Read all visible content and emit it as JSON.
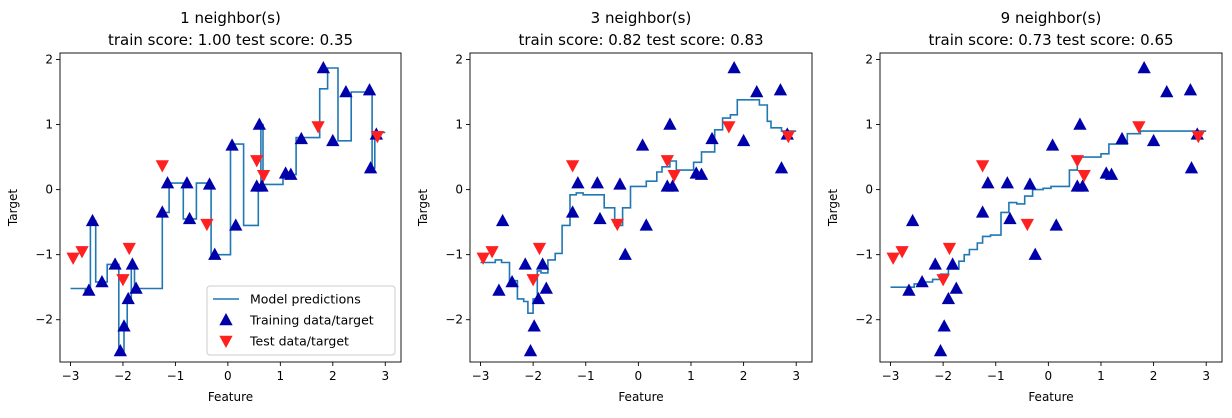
{
  "figure": {
    "legend": {
      "placement": "lower-right",
      "entries": [
        {
          "key": "model",
          "label": "Model predictions"
        },
        {
          "key": "train",
          "label": "Training data/target"
        },
        {
          "key": "test",
          "label": "Test data/target"
        }
      ]
    },
    "colors": {
      "model_line": "#1f77b4",
      "train_marker": "#0000aa",
      "test_marker": "#ff2020",
      "axes": "#000000"
    }
  },
  "chart_data": [
    {
      "type": "line",
      "title_line1": "1 neighbor(s)",
      "title_line2": "train score: 1.00 test score: 0.35",
      "xlabel": "Feature",
      "ylabel": "Target",
      "xlim": [
        -3.2,
        3.3
      ],
      "ylim": [
        -2.65,
        2.1
      ],
      "xticks": [
        -3,
        -2,
        -1,
        0,
        1,
        2,
        3
      ],
      "xtick_labels": [
        "−3",
        "−2",
        "−1",
        "0",
        "1",
        "2",
        "3"
      ],
      "yticks": [
        2,
        1,
        0,
        -1,
        -2
      ],
      "ytick_labels": [
        "2",
        "1",
        "0",
        "−1",
        "−2"
      ],
      "show_legend": true,
      "model_x": [
        -3.0,
        -2.72,
        -2.72,
        -2.62,
        -2.62,
        -2.52,
        -2.52,
        -2.3,
        -2.3,
        -2.08,
        -2.08,
        -1.98,
        -1.98,
        -1.92,
        -1.92,
        -1.84,
        -1.84,
        -1.78,
        -1.78,
        -1.25,
        -1.25,
        -1.12,
        -1.12,
        -0.85,
        -0.85,
        -0.6,
        -0.6,
        -0.32,
        -0.32,
        0.05,
        0.05,
        0.3,
        0.3,
        0.58,
        0.58,
        0.63,
        0.63,
        0.67,
        0.67,
        1.05,
        1.05,
        1.12,
        1.12,
        1.3,
        1.3,
        1.75,
        1.75,
        1.9,
        1.9,
        2.1,
        2.1,
        2.35,
        2.35,
        2.7,
        2.7,
        2.75,
        2.75,
        2.8,
        2.8,
        3.0
      ],
      "model_y": [
        -1.52,
        -1.52,
        -1.55,
        -1.55,
        -0.48,
        -0.48,
        -1.42,
        -1.42,
        -1.15,
        -1.15,
        -2.48,
        -2.48,
        -2.1,
        -2.1,
        -1.68,
        -1.68,
        -1.15,
        -1.15,
        -1.52,
        -1.52,
        -0.35,
        -0.35,
        0.1,
        0.1,
        -0.45,
        -0.45,
        0.1,
        0.1,
        -1.0,
        -1.0,
        0.7,
        0.7,
        -0.55,
        -0.55,
        0.05,
        0.05,
        1.0,
        1.0,
        0.08,
        0.08,
        0.25,
        0.25,
        0.23,
        0.23,
        0.8,
        0.8,
        1.55,
        1.55,
        1.87,
        1.87,
        0.75,
        0.75,
        1.5,
        1.5,
        1.53,
        1.53,
        0.33,
        0.33,
        0.88,
        0.88
      ],
      "train": [
        {
          "x": -2.65,
          "y": -1.55
        },
        {
          "x": -2.58,
          "y": -0.48
        },
        {
          "x": -2.4,
          "y": -1.42
        },
        {
          "x": -2.15,
          "y": -1.15
        },
        {
          "x": -2.05,
          "y": -2.48
        },
        {
          "x": -1.98,
          "y": -2.1
        },
        {
          "x": -1.9,
          "y": -1.68
        },
        {
          "x": -1.82,
          "y": -1.15
        },
        {
          "x": -1.75,
          "y": -1.52
        },
        {
          "x": -1.25,
          "y": -0.35
        },
        {
          "x": -1.15,
          "y": 0.1
        },
        {
          "x": -0.78,
          "y": 0.1
        },
        {
          "x": -0.73,
          "y": -0.45
        },
        {
          "x": -0.35,
          "y": 0.08
        },
        {
          "x": -0.25,
          "y": -1.0
        },
        {
          "x": 0.08,
          "y": 0.68
        },
        {
          "x": 0.15,
          "y": -0.55
        },
        {
          "x": 0.55,
          "y": 0.05
        },
        {
          "x": 0.6,
          "y": 1.0
        },
        {
          "x": 0.65,
          "y": 0.05
        },
        {
          "x": 1.1,
          "y": 0.25
        },
        {
          "x": 1.2,
          "y": 0.23
        },
        {
          "x": 1.4,
          "y": 0.78
        },
        {
          "x": 1.82,
          "y": 1.87
        },
        {
          "x": 2.0,
          "y": 0.75
        },
        {
          "x": 2.25,
          "y": 1.5
        },
        {
          "x": 2.7,
          "y": 1.53
        },
        {
          "x": 2.72,
          "y": 0.33
        },
        {
          "x": 2.83,
          "y": 0.85
        }
      ],
      "test": [
        {
          "x": -2.95,
          "y": -1.05
        },
        {
          "x": -2.78,
          "y": -0.95
        },
        {
          "x": -2.0,
          "y": -1.38
        },
        {
          "x": -1.88,
          "y": -0.9
        },
        {
          "x": -1.25,
          "y": 0.37
        },
        {
          "x": -0.4,
          "y": -0.53
        },
        {
          "x": 0.55,
          "y": 0.45
        },
        {
          "x": 0.68,
          "y": 0.22
        },
        {
          "x": 1.72,
          "y": 0.97
        },
        {
          "x": 2.85,
          "y": 0.82
        }
      ]
    },
    {
      "type": "line",
      "title_line1": "3 neighbor(s)",
      "title_line2": "train score: 0.82 test score: 0.83",
      "xlabel": "Feature",
      "ylabel": "Target",
      "xlim": [
        -3.2,
        3.3
      ],
      "ylim": [
        -2.65,
        2.1
      ],
      "xticks": [
        -3,
        -2,
        -1,
        0,
        1,
        2,
        3
      ],
      "xtick_labels": [
        "−3",
        "−2",
        "−1",
        "0",
        "1",
        "2",
        "3"
      ],
      "yticks": [
        2,
        1,
        0,
        -1,
        -2
      ],
      "ytick_labels": [
        "2",
        "1",
        "0",
        "−1",
        "−2"
      ],
      "show_legend": false,
      "model_x": [
        -3.0,
        -2.72,
        -2.72,
        -2.6,
        -2.6,
        -2.45,
        -2.45,
        -2.3,
        -2.3,
        -2.18,
        -2.18,
        -2.1,
        -2.1,
        -2.0,
        -2.0,
        -1.92,
        -1.92,
        -1.85,
        -1.85,
        -1.72,
        -1.72,
        -1.58,
        -1.58,
        -1.45,
        -1.45,
        -1.3,
        -1.3,
        -1.18,
        -1.18,
        -1.05,
        -1.05,
        -0.65,
        -0.65,
        -0.45,
        -0.45,
        -0.3,
        -0.3,
        -0.15,
        -0.15,
        0.15,
        0.15,
        0.35,
        0.35,
        0.45,
        0.45,
        0.6,
        0.6,
        0.72,
        0.72,
        1.05,
        1.05,
        1.2,
        1.2,
        1.45,
        1.45,
        1.6,
        1.6,
        1.75,
        1.75,
        1.88,
        1.88,
        2.3,
        2.3,
        2.45,
        2.45,
        2.52,
        2.52,
        2.72,
        2.72,
        3.0
      ],
      "model_y": [
        -1.12,
        -1.12,
        -1.08,
        -1.08,
        -1.12,
        -1.12,
        -1.4,
        -1.4,
        -1.68,
        -1.68,
        -1.72,
        -1.72,
        -1.9,
        -1.9,
        -1.68,
        -1.68,
        -1.25,
        -1.25,
        -1.28,
        -1.28,
        -1.08,
        -1.08,
        -0.98,
        -0.98,
        -0.55,
        -0.55,
        -0.08,
        -0.08,
        -0.05,
        -0.05,
        -0.08,
        -0.08,
        -0.28,
        -0.28,
        -0.55,
        -0.55,
        -0.28,
        -0.28,
        0.05,
        0.05,
        0.13,
        0.13,
        0.27,
        0.27,
        0.35,
        0.35,
        0.44,
        0.44,
        0.3,
        0.3,
        0.42,
        0.42,
        0.58,
        0.58,
        0.92,
        0.92,
        1.1,
        1.1,
        1.15,
        1.15,
        1.38,
        1.38,
        1.3,
        1.3,
        1.05,
        1.05,
        0.95,
        0.95,
        0.9,
        0.9
      ],
      "train": [
        {
          "x": -2.65,
          "y": -1.55
        },
        {
          "x": -2.58,
          "y": -0.48
        },
        {
          "x": -2.4,
          "y": -1.42
        },
        {
          "x": -2.15,
          "y": -1.15
        },
        {
          "x": -2.05,
          "y": -2.48
        },
        {
          "x": -1.98,
          "y": -2.1
        },
        {
          "x": -1.9,
          "y": -1.68
        },
        {
          "x": -1.82,
          "y": -1.15
        },
        {
          "x": -1.75,
          "y": -1.52
        },
        {
          "x": -1.25,
          "y": -0.35
        },
        {
          "x": -1.15,
          "y": 0.1
        },
        {
          "x": -0.78,
          "y": 0.1
        },
        {
          "x": -0.73,
          "y": -0.45
        },
        {
          "x": -0.35,
          "y": 0.08
        },
        {
          "x": -0.25,
          "y": -1.0
        },
        {
          "x": 0.08,
          "y": 0.68
        },
        {
          "x": 0.15,
          "y": -0.55
        },
        {
          "x": 0.55,
          "y": 0.05
        },
        {
          "x": 0.6,
          "y": 1.0
        },
        {
          "x": 0.65,
          "y": 0.05
        },
        {
          "x": 1.1,
          "y": 0.25
        },
        {
          "x": 1.2,
          "y": 0.23
        },
        {
          "x": 1.4,
          "y": 0.78
        },
        {
          "x": 1.82,
          "y": 1.87
        },
        {
          "x": 2.0,
          "y": 0.75
        },
        {
          "x": 2.25,
          "y": 1.5
        },
        {
          "x": 2.7,
          "y": 1.53
        },
        {
          "x": 2.72,
          "y": 0.33
        },
        {
          "x": 2.83,
          "y": 0.85
        }
      ],
      "test": [
        {
          "x": -2.95,
          "y": -1.05
        },
        {
          "x": -2.78,
          "y": -0.95
        },
        {
          "x": -2.0,
          "y": -1.38
        },
        {
          "x": -1.88,
          "y": -0.9
        },
        {
          "x": -1.25,
          "y": 0.37
        },
        {
          "x": -0.4,
          "y": -0.53
        },
        {
          "x": 0.55,
          "y": 0.45
        },
        {
          "x": 0.68,
          "y": 0.22
        },
        {
          "x": 1.72,
          "y": 0.97
        },
        {
          "x": 2.85,
          "y": 0.82
        }
      ]
    },
    {
      "type": "line",
      "title_line1": "9 neighbor(s)",
      "title_line2": "train score: 0.73 test score: 0.65",
      "xlabel": "Feature",
      "ylabel": "Target",
      "xlim": [
        -3.2,
        3.3
      ],
      "ylim": [
        -2.65,
        2.1
      ],
      "xticks": [
        -3,
        -2,
        -1,
        0,
        1,
        2,
        3
      ],
      "xtick_labels": [
        "−3",
        "−2",
        "−1",
        "0",
        "1",
        "2",
        "3"
      ],
      "yticks": [
        2,
        1,
        0,
        -1,
        -2
      ],
      "ytick_labels": [
        "2",
        "1",
        "0",
        "−1",
        "−2"
      ],
      "show_legend": false,
      "model_x": [
        -3.0,
        -2.55,
        -2.55,
        -2.35,
        -2.35,
        -2.2,
        -2.2,
        -2.05,
        -2.05,
        -1.9,
        -1.9,
        -1.7,
        -1.7,
        -1.6,
        -1.6,
        -1.5,
        -1.5,
        -1.35,
        -1.35,
        -1.25,
        -1.25,
        -1.1,
        -1.1,
        -0.9,
        -0.9,
        -0.75,
        -0.75,
        -0.6,
        -0.6,
        -0.45,
        -0.45,
        -0.3,
        -0.3,
        -0.1,
        -0.1,
        0.05,
        0.05,
        0.4,
        0.4,
        0.55,
        0.55,
        1.0,
        1.0,
        1.15,
        1.15,
        1.5,
        1.5,
        1.75,
        1.75,
        3.0
      ],
      "model_y": [
        -1.5,
        -1.5,
        -1.45,
        -1.45,
        -1.42,
        -1.42,
        -1.38,
        -1.38,
        -1.3,
        -1.3,
        -1.22,
        -1.22,
        -1.1,
        -1.1,
        -1.0,
        -1.0,
        -0.92,
        -0.92,
        -0.82,
        -0.82,
        -0.72,
        -0.72,
        -0.7,
        -0.7,
        -0.35,
        -0.35,
        -0.2,
        -0.2,
        -0.22,
        -0.22,
        -0.1,
        -0.1,
        0.0,
        0.0,
        0.02,
        0.02,
        0.05,
        0.05,
        0.3,
        0.3,
        0.5,
        0.5,
        0.55,
        0.55,
        0.7,
        0.7,
        0.86,
        0.86,
        0.9,
        0.9
      ],
      "train": [
        {
          "x": -2.65,
          "y": -1.55
        },
        {
          "x": -2.58,
          "y": -0.48
        },
        {
          "x": -2.4,
          "y": -1.42
        },
        {
          "x": -2.15,
          "y": -1.15
        },
        {
          "x": -2.05,
          "y": -2.48
        },
        {
          "x": -1.98,
          "y": -2.1
        },
        {
          "x": -1.9,
          "y": -1.68
        },
        {
          "x": -1.82,
          "y": -1.15
        },
        {
          "x": -1.75,
          "y": -1.52
        },
        {
          "x": -1.25,
          "y": -0.35
        },
        {
          "x": -1.15,
          "y": 0.1
        },
        {
          "x": -0.78,
          "y": 0.1
        },
        {
          "x": -0.73,
          "y": -0.45
        },
        {
          "x": -0.35,
          "y": 0.08
        },
        {
          "x": -0.25,
          "y": -1.0
        },
        {
          "x": 0.08,
          "y": 0.68
        },
        {
          "x": 0.15,
          "y": -0.55
        },
        {
          "x": 0.55,
          "y": 0.05
        },
        {
          "x": 0.6,
          "y": 1.0
        },
        {
          "x": 0.65,
          "y": 0.05
        },
        {
          "x": 1.1,
          "y": 0.25
        },
        {
          "x": 1.2,
          "y": 0.23
        },
        {
          "x": 1.4,
          "y": 0.78
        },
        {
          "x": 1.82,
          "y": 1.87
        },
        {
          "x": 2.0,
          "y": 0.75
        },
        {
          "x": 2.25,
          "y": 1.5
        },
        {
          "x": 2.7,
          "y": 1.53
        },
        {
          "x": 2.72,
          "y": 0.33
        },
        {
          "x": 2.83,
          "y": 0.85
        }
      ],
      "test": [
        {
          "x": -2.95,
          "y": -1.05
        },
        {
          "x": -2.78,
          "y": -0.95
        },
        {
          "x": -2.0,
          "y": -1.38
        },
        {
          "x": -1.88,
          "y": -0.9
        },
        {
          "x": -1.25,
          "y": 0.37
        },
        {
          "x": -0.4,
          "y": -0.53
        },
        {
          "x": 0.55,
          "y": 0.45
        },
        {
          "x": 0.68,
          "y": 0.22
        },
        {
          "x": 1.72,
          "y": 0.97
        },
        {
          "x": 2.85,
          "y": 0.82
        }
      ]
    }
  ]
}
